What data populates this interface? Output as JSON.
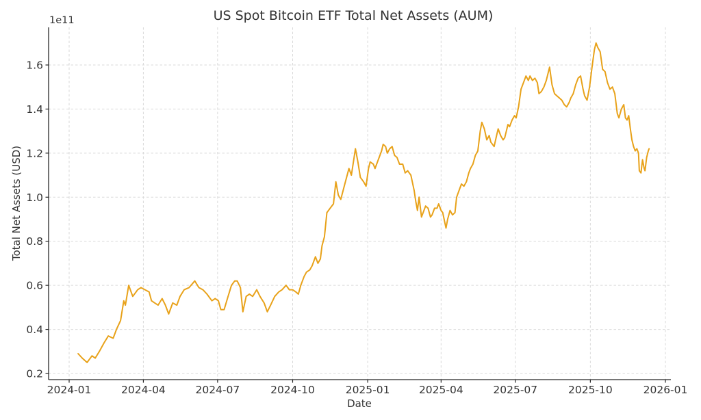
{
  "chart_data": {
    "type": "line",
    "title": "US Spot Bitcoin ETF Total Net Assets (AUM)",
    "xlabel": "Date",
    "ylabel": "Total Net Assets (USD)",
    "offset_text": "1e11",
    "grid": true,
    "legend": "none",
    "line_color": "#E8A21A",
    "x_ticks": [
      "2024-01",
      "2024-04",
      "2024-07",
      "2024-10",
      "2025-01",
      "2025-04",
      "2025-07",
      "2025-10",
      "2026-01"
    ],
    "y_ticks": [
      "0.2",
      "0.4",
      "0.6",
      "0.8",
      "1.0",
      "1.2",
      "1.4",
      "1.6"
    ],
    "y_unit_multiplier": "1e11 USD",
    "xlim": [
      "2023-12-07",
      "2026-01-08"
    ],
    "ylim": [
      0.17,
      1.77
    ],
    "points": [
      [
        "2024-01-12",
        0.29
      ],
      [
        "2024-01-17",
        0.27
      ],
      [
        "2024-01-23",
        0.25
      ],
      [
        "2024-01-29",
        0.28
      ],
      [
        "2024-02-02",
        0.27
      ],
      [
        "2024-02-07",
        0.3
      ],
      [
        "2024-02-13",
        0.34
      ],
      [
        "2024-02-18",
        0.37
      ],
      [
        "2024-02-24",
        0.36
      ],
      [
        "2024-02-28",
        0.4
      ],
      [
        "2024-03-04",
        0.44
      ],
      [
        "2024-03-08",
        0.53
      ],
      [
        "2024-03-10",
        0.51
      ],
      [
        "2024-03-14",
        0.6
      ],
      [
        "2024-03-19",
        0.55
      ],
      [
        "2024-03-25",
        0.58
      ],
      [
        "2024-03-29",
        0.59
      ],
      [
        "2024-04-03",
        0.58
      ],
      [
        "2024-04-08",
        0.57
      ],
      [
        "2024-04-11",
        0.53
      ],
      [
        "2024-04-15",
        0.52
      ],
      [
        "2024-04-19",
        0.51
      ],
      [
        "2024-04-24",
        0.54
      ],
      [
        "2024-04-28",
        0.51
      ],
      [
        "2024-05-02",
        0.47
      ],
      [
        "2024-05-07",
        0.52
      ],
      [
        "2024-05-12",
        0.51
      ],
      [
        "2024-05-16",
        0.55
      ],
      [
        "2024-05-21",
        0.58
      ],
      [
        "2024-05-27",
        0.59
      ],
      [
        "2024-06-03",
        0.62
      ],
      [
        "2024-06-08",
        0.59
      ],
      [
        "2024-06-13",
        0.58
      ],
      [
        "2024-06-18",
        0.56
      ],
      [
        "2024-06-24",
        0.53
      ],
      [
        "2024-06-28",
        0.54
      ],
      [
        "2024-07-02",
        0.53
      ],
      [
        "2024-07-05",
        0.49
      ],
      [
        "2024-07-09",
        0.49
      ],
      [
        "2024-07-13",
        0.54
      ],
      [
        "2024-07-18",
        0.6
      ],
      [
        "2024-07-22",
        0.62
      ],
      [
        "2024-07-25",
        0.62
      ],
      [
        "2024-07-29",
        0.59
      ],
      [
        "2024-08-01",
        0.48
      ],
      [
        "2024-08-05",
        0.55
      ],
      [
        "2024-08-09",
        0.56
      ],
      [
        "2024-08-13",
        0.55
      ],
      [
        "2024-08-18",
        0.58
      ],
      [
        "2024-08-22",
        0.55
      ],
      [
        "2024-08-27",
        0.52
      ],
      [
        "2024-08-31",
        0.48
      ],
      [
        "2024-09-04",
        0.51
      ],
      [
        "2024-09-09",
        0.55
      ],
      [
        "2024-09-14",
        0.57
      ],
      [
        "2024-09-18",
        0.58
      ],
      [
        "2024-09-23",
        0.6
      ],
      [
        "2024-09-27",
        0.58
      ],
      [
        "2024-10-01",
        0.58
      ],
      [
        "2024-10-05",
        0.57
      ],
      [
        "2024-10-08",
        0.56
      ],
      [
        "2024-10-11",
        0.6
      ],
      [
        "2024-10-15",
        0.64
      ],
      [
        "2024-10-18",
        0.66
      ],
      [
        "2024-10-22",
        0.67
      ],
      [
        "2024-10-25",
        0.69
      ],
      [
        "2024-10-29",
        0.73
      ],
      [
        "2024-11-01",
        0.7
      ],
      [
        "2024-11-04",
        0.72
      ],
      [
        "2024-11-06",
        0.78
      ],
      [
        "2024-11-09",
        0.82
      ],
      [
        "2024-11-12",
        0.93
      ],
      [
        "2024-11-16",
        0.95
      ],
      [
        "2024-11-20",
        0.97
      ],
      [
        "2024-11-23",
        1.07
      ],
      [
        "2024-11-26",
        1.01
      ],
      [
        "2024-11-29",
        0.99
      ],
      [
        "2024-12-04",
        1.06
      ],
      [
        "2024-12-09",
        1.13
      ],
      [
        "2024-12-12",
        1.1
      ],
      [
        "2024-12-17",
        1.22
      ],
      [
        "2024-12-20",
        1.16
      ],
      [
        "2024-12-23",
        1.09
      ],
      [
        "2024-12-27",
        1.07
      ],
      [
        "2024-12-30",
        1.05
      ],
      [
        "2025-01-02",
        1.13
      ],
      [
        "2025-01-04",
        1.16
      ],
      [
        "2025-01-08",
        1.15
      ],
      [
        "2025-01-10",
        1.13
      ],
      [
        "2025-01-14",
        1.17
      ],
      [
        "2025-01-18",
        1.21
      ],
      [
        "2025-01-20",
        1.24
      ],
      [
        "2025-01-23",
        1.23
      ],
      [
        "2025-01-25",
        1.2
      ],
      [
        "2025-01-28",
        1.22
      ],
      [
        "2025-01-31",
        1.23
      ],
      [
        "2025-02-03",
        1.19
      ],
      [
        "2025-02-06",
        1.18
      ],
      [
        "2025-02-09",
        1.15
      ],
      [
        "2025-02-13",
        1.15
      ],
      [
        "2025-02-16",
        1.11
      ],
      [
        "2025-02-19",
        1.12
      ],
      [
        "2025-02-23",
        1.1
      ],
      [
        "2025-02-27",
        1.03
      ],
      [
        "2025-03-01",
        0.98
      ],
      [
        "2025-03-03",
        0.94
      ],
      [
        "2025-03-05",
        1.0
      ],
      [
        "2025-03-08",
        0.91
      ],
      [
        "2025-03-11",
        0.94
      ],
      [
        "2025-03-13",
        0.96
      ],
      [
        "2025-03-16",
        0.95
      ],
      [
        "2025-03-19",
        0.91
      ],
      [
        "2025-03-21",
        0.92
      ],
      [
        "2025-03-24",
        0.95
      ],
      [
        "2025-03-27",
        0.95
      ],
      [
        "2025-03-29",
        0.97
      ],
      [
        "2025-04-01",
        0.94
      ],
      [
        "2025-04-03",
        0.93
      ],
      [
        "2025-04-07",
        0.86
      ],
      [
        "2025-04-09",
        0.9
      ],
      [
        "2025-04-12",
        0.94
      ],
      [
        "2025-04-15",
        0.92
      ],
      [
        "2025-04-18",
        0.93
      ],
      [
        "2025-04-20",
        1.0
      ],
      [
        "2025-04-24",
        1.04
      ],
      [
        "2025-04-26",
        1.06
      ],
      [
        "2025-04-29",
        1.05
      ],
      [
        "2025-05-02",
        1.07
      ],
      [
        "2025-05-05",
        1.11
      ],
      [
        "2025-05-07",
        1.13
      ],
      [
        "2025-05-10",
        1.15
      ],
      [
        "2025-05-13",
        1.19
      ],
      [
        "2025-05-16",
        1.21
      ],
      [
        "2025-05-19",
        1.3
      ],
      [
        "2025-05-21",
        1.34
      ],
      [
        "2025-05-24",
        1.31
      ],
      [
        "2025-05-27",
        1.26
      ],
      [
        "2025-05-30",
        1.28
      ],
      [
        "2025-06-01",
        1.25
      ],
      [
        "2025-06-05",
        1.23
      ],
      [
        "2025-06-08",
        1.28
      ],
      [
        "2025-06-10",
        1.31
      ],
      [
        "2025-06-13",
        1.28
      ],
      [
        "2025-06-16",
        1.26
      ],
      [
        "2025-06-18",
        1.27
      ],
      [
        "2025-06-22",
        1.33
      ],
      [
        "2025-06-24",
        1.32
      ],
      [
        "2025-06-27",
        1.35
      ],
      [
        "2025-06-30",
        1.37
      ],
      [
        "2025-07-02",
        1.36
      ],
      [
        "2025-07-05",
        1.41
      ],
      [
        "2025-07-08",
        1.49
      ],
      [
        "2025-07-11",
        1.52
      ],
      [
        "2025-07-14",
        1.55
      ],
      [
        "2025-07-17",
        1.53
      ],
      [
        "2025-07-19",
        1.55
      ],
      [
        "2025-07-22",
        1.53
      ],
      [
        "2025-07-25",
        1.54
      ],
      [
        "2025-07-28",
        1.52
      ],
      [
        "2025-07-30",
        1.47
      ],
      [
        "2025-08-02",
        1.48
      ],
      [
        "2025-08-05",
        1.5
      ],
      [
        "2025-08-08",
        1.53
      ],
      [
        "2025-08-12",
        1.59
      ],
      [
        "2025-08-15",
        1.51
      ],
      [
        "2025-08-18",
        1.47
      ],
      [
        "2025-08-21",
        1.46
      ],
      [
        "2025-08-24",
        1.45
      ],
      [
        "2025-08-27",
        1.44
      ],
      [
        "2025-08-30",
        1.42
      ],
      [
        "2025-09-02",
        1.41
      ],
      [
        "2025-09-05",
        1.43
      ],
      [
        "2025-09-07",
        1.45
      ],
      [
        "2025-09-10",
        1.47
      ],
      [
        "2025-09-13",
        1.51
      ],
      [
        "2025-09-16",
        1.54
      ],
      [
        "2025-09-19",
        1.55
      ],
      [
        "2025-09-22",
        1.49
      ],
      [
        "2025-09-24",
        1.46
      ],
      [
        "2025-09-27",
        1.44
      ],
      [
        "2025-09-30",
        1.5
      ],
      [
        "2025-10-03",
        1.59
      ],
      [
        "2025-10-06",
        1.67
      ],
      [
        "2025-10-08",
        1.7
      ],
      [
        "2025-10-10",
        1.68
      ],
      [
        "2025-10-13",
        1.66
      ],
      [
        "2025-10-16",
        1.58
      ],
      [
        "2025-10-19",
        1.57
      ],
      [
        "2025-10-22",
        1.52
      ],
      [
        "2025-10-25",
        1.49
      ],
      [
        "2025-10-28",
        1.5
      ],
      [
        "2025-10-31",
        1.47
      ],
      [
        "2025-11-03",
        1.38
      ],
      [
        "2025-11-05",
        1.36
      ],
      [
        "2025-11-08",
        1.4
      ],
      [
        "2025-11-11",
        1.42
      ],
      [
        "2025-11-13",
        1.36
      ],
      [
        "2025-11-15",
        1.35
      ],
      [
        "2025-11-17",
        1.37
      ],
      [
        "2025-11-19",
        1.31
      ],
      [
        "2025-11-21",
        1.26
      ],
      [
        "2025-11-23",
        1.23
      ],
      [
        "2025-11-25",
        1.21
      ],
      [
        "2025-11-27",
        1.22
      ],
      [
        "2025-11-29",
        1.2
      ],
      [
        "2025-11-30",
        1.12
      ],
      [
        "2025-12-02",
        1.11
      ],
      [
        "2025-12-04",
        1.17
      ],
      [
        "2025-12-06",
        1.13
      ],
      [
        "2025-12-07",
        1.12
      ],
      [
        "2025-12-09",
        1.18
      ],
      [
        "2025-12-11",
        1.21
      ],
      [
        "2025-12-12",
        1.22
      ]
    ]
  }
}
